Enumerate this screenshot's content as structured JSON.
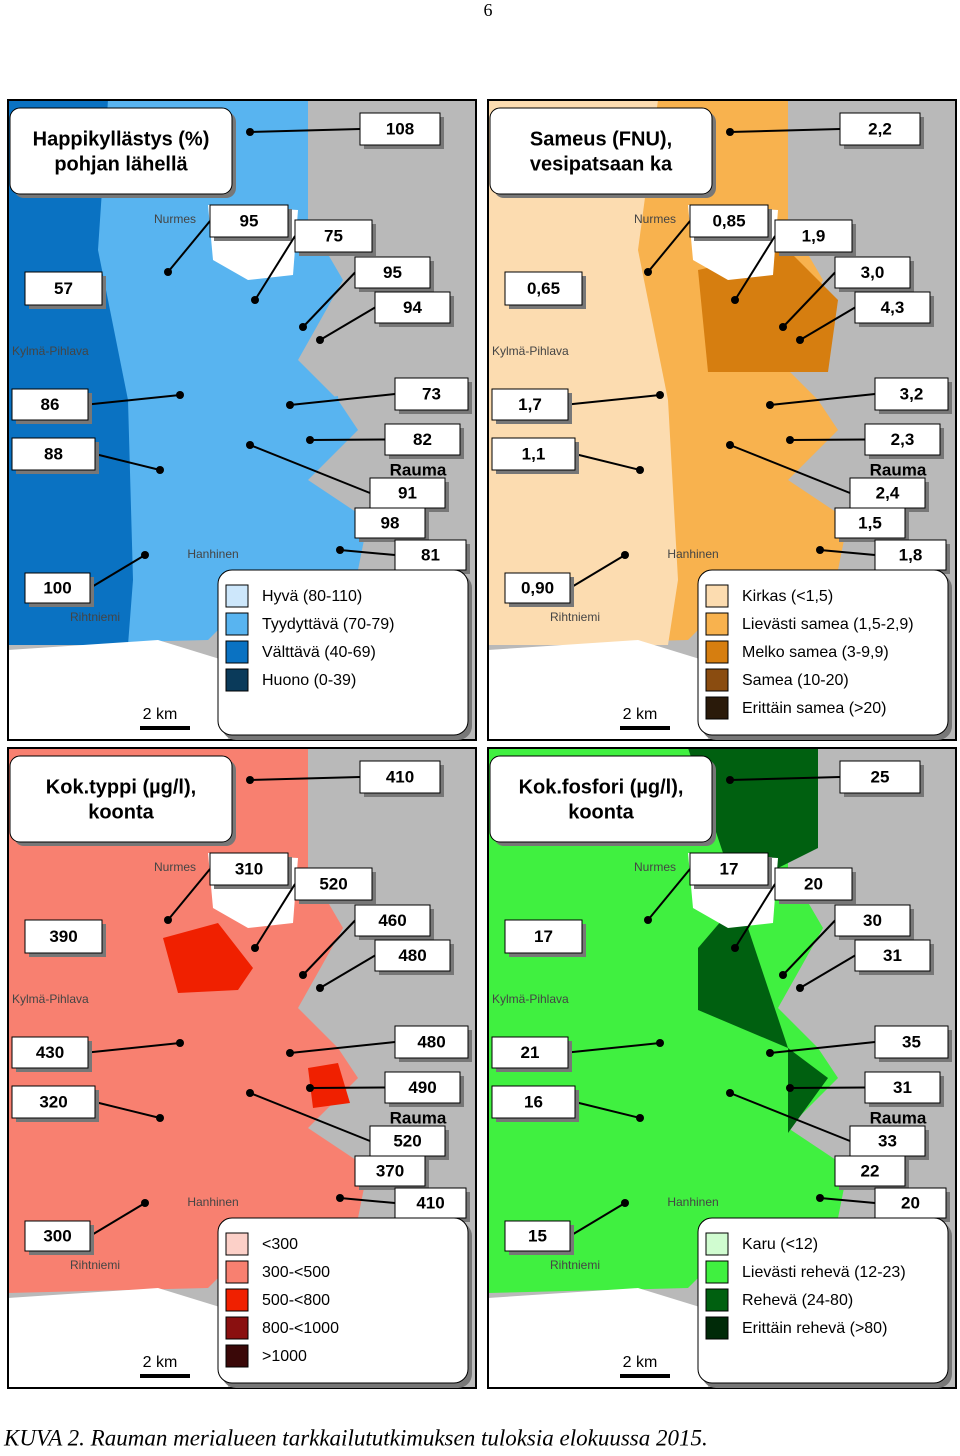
{
  "page_number": "6",
  "place_names": {
    "nurmes": "Nurmes",
    "kylma": "Kylmä-Pihlava",
    "rauma": "Rauma",
    "hanhinen": "Hanhinen",
    "rihtniemi": "Rihtniemi",
    "scale": "2 km"
  },
  "panels": [
    {
      "title": [
        "Happikyllästys (%)",
        "pohjan lähellä"
      ],
      "values": [
        "108",
        "95",
        "75",
        "57",
        "95",
        "94",
        "86",
        "73",
        "88",
        "82",
        "91",
        "98",
        "81",
        "100"
      ],
      "legend": [
        {
          "label": "Hyvä (80-110)",
          "color": "#cde7fb"
        },
        {
          "label": "Tyydyttävä (70-79)",
          "color": "#58b4f0"
        },
        {
          "label": "Välttävä (40-69)",
          "color": "#0a72c2"
        },
        {
          "label": "Huono (0-39)",
          "color": "#0a3a5a"
        }
      ]
    },
    {
      "title": [
        "Sameus (FNU),",
        "vesipatsaan ka"
      ],
      "values": [
        "2,2",
        "0,85",
        "1,9",
        "0,65",
        "3,0",
        "4,3",
        "1,7",
        "3,2",
        "1,1",
        "2,3",
        "2,4",
        "1,5",
        "1,8",
        "0,90"
      ],
      "legend": [
        {
          "label": "Kirkas (<1,5)",
          "color": "#fcdcb0"
        },
        {
          "label": "Lievästi samea (1,5-2,9)",
          "color": "#f8b24e"
        },
        {
          "label": "Melko samea (3-9,9)",
          "color": "#d67e10"
        },
        {
          "label": "Samea (10-20)",
          "color": "#8a4c10"
        },
        {
          "label": "Erittäin samea (>20)",
          "color": "#2a1a0a"
        }
      ]
    },
    {
      "title": [
        "Kok.typpi (µg/l),",
        "koonta"
      ],
      "values": [
        "410",
        "310",
        "520",
        "390",
        "460",
        "480",
        "430",
        "480",
        "320",
        "490",
        "520",
        "370",
        "410",
        "300"
      ],
      "legend": [
        {
          "label": "<300",
          "color": "#fcd0c8"
        },
        {
          "label": "300-<500",
          "color": "#f88070"
        },
        {
          "label": "500-<800",
          "color": "#f02000"
        },
        {
          "label": "800-<1000",
          "color": "#8a1010"
        },
        {
          "label": ">1000",
          "color": "#3a0808"
        }
      ]
    },
    {
      "title": [
        "Kok.fosfori (µg/l),",
        "koonta"
      ],
      "values": [
        "25",
        "17",
        "20",
        "17",
        "30",
        "31",
        "21",
        "35",
        "16",
        "31",
        "33",
        "22",
        "20",
        "15"
      ],
      "legend": [
        {
          "label": "Karu (<12)",
          "color": "#d0fcd0"
        },
        {
          "label": "Lievästi rehevä (12-23)",
          "color": "#40f040"
        },
        {
          "label": "Rehevä (24-80)",
          "color": "#006010"
        },
        {
          "label": "Erittäin rehevä (>80)",
          "color": "#002a08"
        }
      ]
    }
  ],
  "caption": "KUVA 2. Rauman merialueen tarkkailututkimuksen tuloksia elokuussa 2015."
}
